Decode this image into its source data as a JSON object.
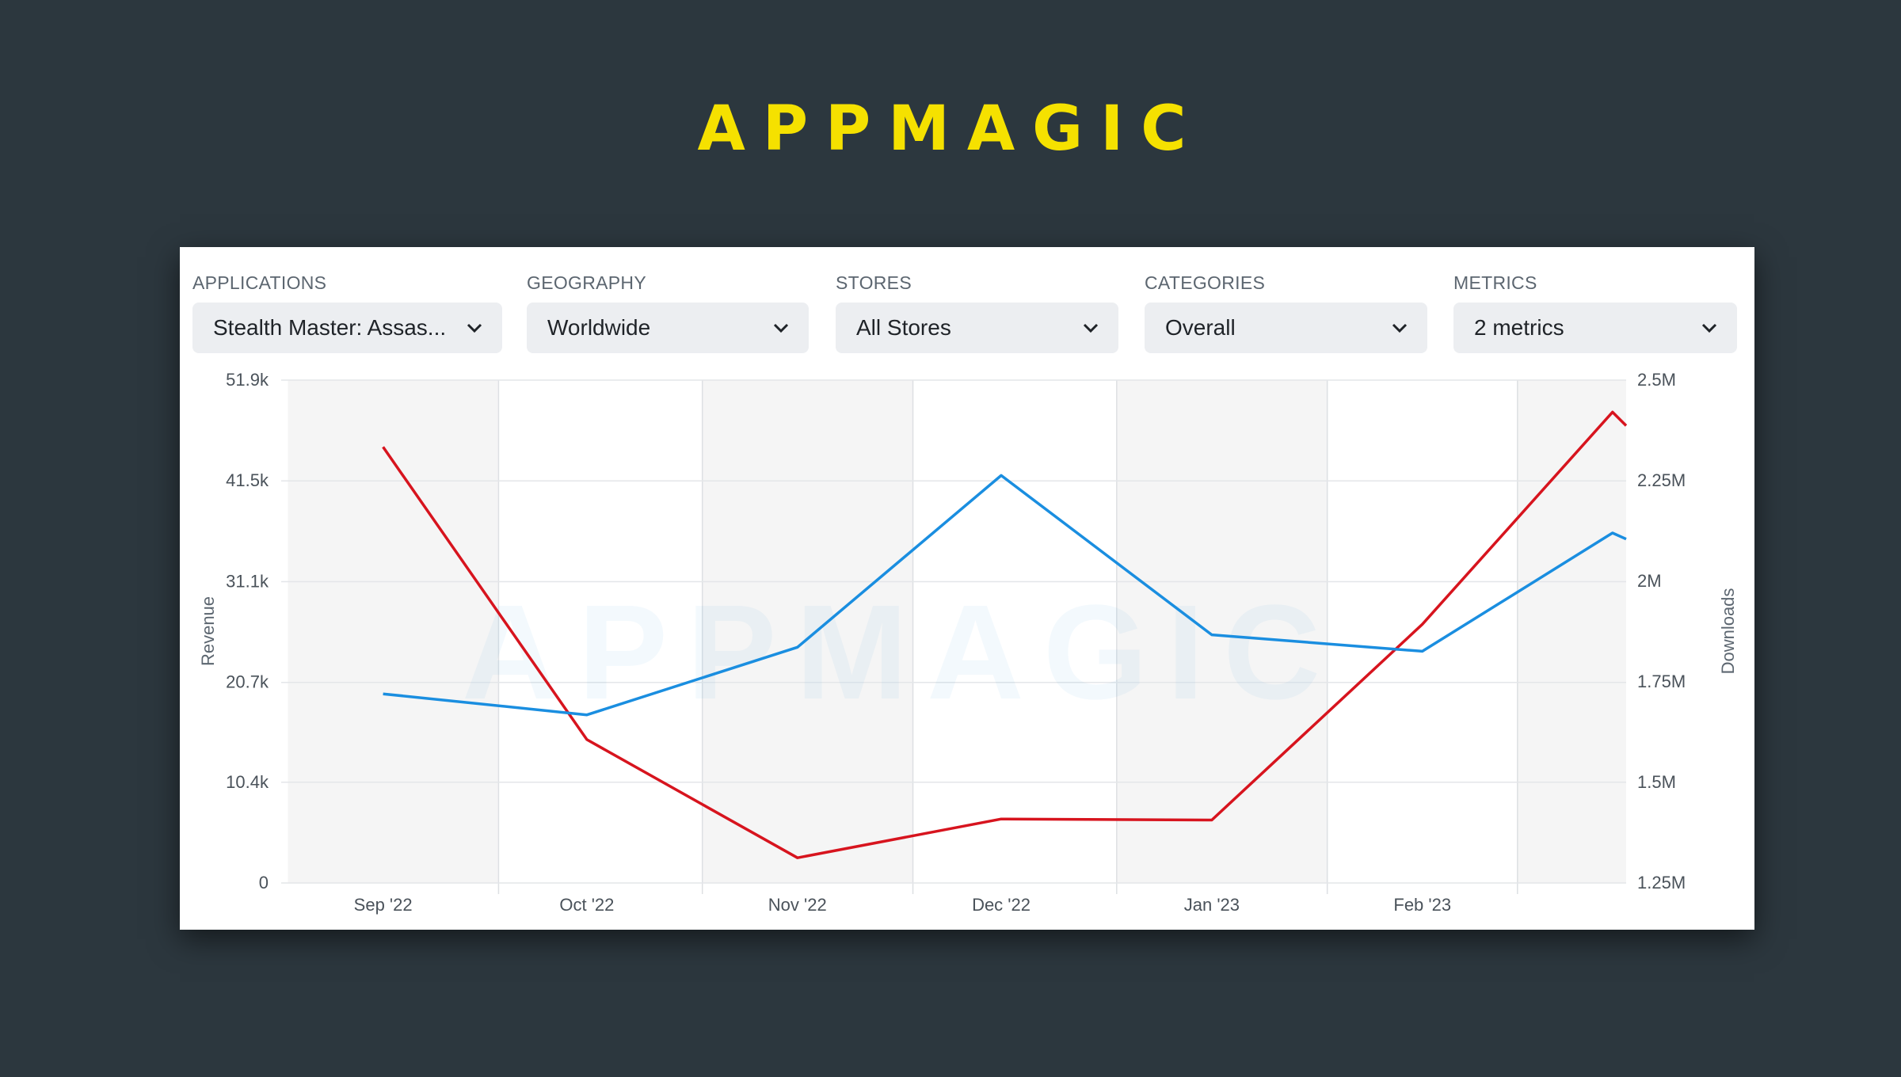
{
  "brand": {
    "logo_text": "APPMAGIC",
    "color": "#f5e100",
    "watermark_text": "APPMAGIC"
  },
  "filters": [
    {
      "label": "APPLICATIONS",
      "value": "Stealth Master: Assas..."
    },
    {
      "label": "GEOGRAPHY",
      "value": "Worldwide"
    },
    {
      "label": "STORES",
      "value": "All Stores"
    },
    {
      "label": "CATEGORIES",
      "value": "Overall"
    },
    {
      "label": "METRICS",
      "value": "2 metrics"
    }
  ],
  "icons": {
    "dropdown": "chevron-down-icon"
  },
  "chart_data": {
    "type": "line",
    "title": "",
    "xlabel": "",
    "ylabel": "Revenue",
    "y2label": "Downloads",
    "ylim": [
      0,
      51900
    ],
    "y2lim": [
      1250000,
      2500000
    ],
    "y_ticks": [
      0,
      10400,
      20700,
      31100,
      41500,
      51900
    ],
    "y_tick_labels": [
      "0",
      "10.4k",
      "20.7k",
      "31.1k",
      "41.5k",
      "51.9k"
    ],
    "y2_ticks": [
      1250000,
      1500000,
      1750000,
      2000000,
      2250000,
      2500000
    ],
    "y2_tick_labels": [
      "1.25M",
      "1.5M",
      "1.75M",
      "2M",
      "2.25M",
      "2.5M"
    ],
    "x_tick_labels": [
      "Sep '22",
      "Oct '22",
      "Nov '22",
      "Dec '22",
      "Jan '23",
      "Feb '23"
    ],
    "grid": true,
    "series": [
      {
        "name": "Revenue",
        "axis": "left",
        "color": "#d7141e",
        "x": [
          "2022-09-01",
          "2022-10-01",
          "2022-11-01",
          "2022-12-01",
          "2023-01-01",
          "2023-02-01",
          "2023-03-01",
          "2023-03-03"
        ],
        "values": [
          45000,
          14800,
          2600,
          6600,
          6500,
          26700,
          48600,
          47200
        ]
      },
      {
        "name": "Downloads",
        "axis": "right",
        "color": "#1a8ee0",
        "x": [
          "2022-09-01",
          "2022-10-01",
          "2022-11-01",
          "2022-12-01",
          "2023-01-01",
          "2023-02-01",
          "2023-03-01",
          "2023-03-03"
        ],
        "values": [
          1720000,
          1668000,
          1836000,
          2263000,
          1867000,
          1826000,
          2120000,
          2105000
        ]
      }
    ]
  }
}
